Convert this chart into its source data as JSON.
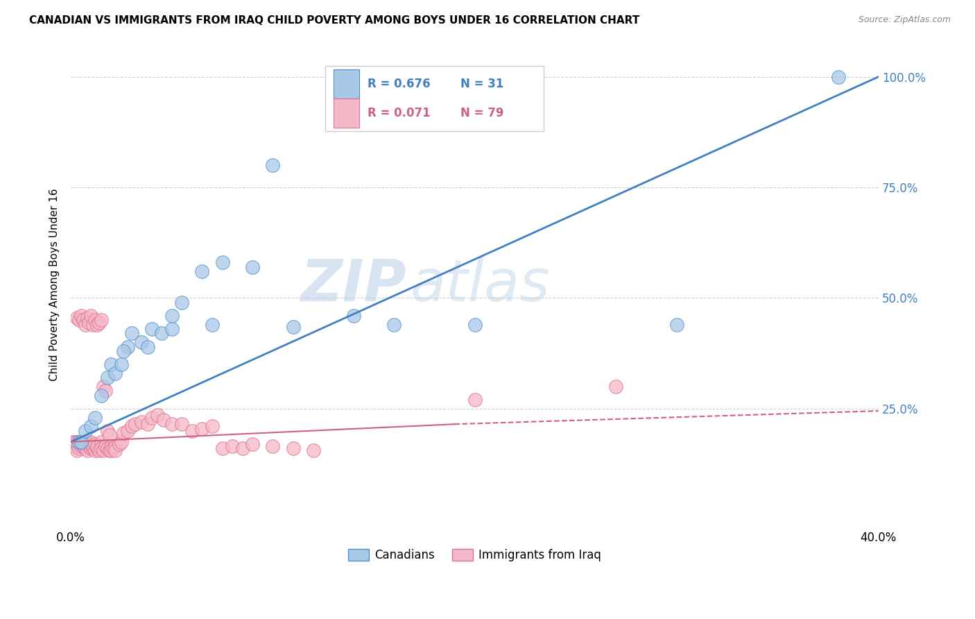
{
  "title": "CANADIAN VS IMMIGRANTS FROM IRAQ CHILD POVERTY AMONG BOYS UNDER 16 CORRELATION CHART",
  "source": "Source: ZipAtlas.com",
  "ylabel": "Child Poverty Among Boys Under 16",
  "xlim": [
    0.0,
    0.4
  ],
  "ylim": [
    -0.02,
    1.08
  ],
  "yticks": [
    0.0,
    0.25,
    0.5,
    0.75,
    1.0
  ],
  "ytick_labels": [
    "",
    "25.0%",
    "50.0%",
    "75.0%",
    "100.0%"
  ],
  "watermark_zip": "ZIP",
  "watermark_atlas": "atlas",
  "legend_canadian_R": "R = 0.676",
  "legend_canadian_N": "N = 31",
  "legend_iraq_R": "R = 0.071",
  "legend_iraq_N": "N = 79",
  "canadian_color": "#a8c8e8",
  "iraq_color": "#f5b8c8",
  "canadian_edge_color": "#5090c8",
  "iraq_edge_color": "#e07090",
  "canadian_line_color": "#4080c0",
  "iraq_line_color": "#d06080",
  "background_color": "#ffffff",
  "grid_color": "#d0d0d0",
  "can_line_x0": 0.0,
  "can_line_y0": 0.175,
  "can_line_x1": 0.4,
  "can_line_y1": 1.0,
  "iraq_line_x0": 0.0,
  "iraq_line_y0": 0.175,
  "iraq_line_solid_x1": 0.19,
  "iraq_line_y1_at_solid": 0.215,
  "iraq_line_x1": 0.4,
  "iraq_line_y1": 0.245,
  "canadians_x": [
    0.004,
    0.005,
    0.007,
    0.01,
    0.012,
    0.015,
    0.018,
    0.02,
    0.022,
    0.025,
    0.028,
    0.03,
    0.035,
    0.04,
    0.045,
    0.05,
    0.055,
    0.065,
    0.075,
    0.09,
    0.1,
    0.11,
    0.14,
    0.16,
    0.2,
    0.3,
    0.38,
    0.026,
    0.038,
    0.05,
    0.07
  ],
  "canadians_y": [
    0.175,
    0.175,
    0.2,
    0.21,
    0.23,
    0.28,
    0.32,
    0.35,
    0.33,
    0.35,
    0.39,
    0.42,
    0.4,
    0.43,
    0.42,
    0.46,
    0.49,
    0.56,
    0.58,
    0.57,
    0.8,
    0.435,
    0.46,
    0.44,
    0.44,
    0.44,
    1.0,
    0.38,
    0.39,
    0.43,
    0.44
  ],
  "iraq_x": [
    0.001,
    0.002,
    0.002,
    0.003,
    0.003,
    0.004,
    0.004,
    0.005,
    0.005,
    0.006,
    0.006,
    0.007,
    0.007,
    0.008,
    0.008,
    0.009,
    0.009,
    0.01,
    0.01,
    0.011,
    0.011,
    0.012,
    0.012,
    0.013,
    0.013,
    0.014,
    0.015,
    0.015,
    0.016,
    0.017,
    0.018,
    0.019,
    0.02,
    0.02,
    0.021,
    0.022,
    0.022,
    0.024,
    0.025,
    0.026,
    0.028,
    0.03,
    0.032,
    0.035,
    0.038,
    0.04,
    0.043,
    0.046,
    0.05,
    0.055,
    0.06,
    0.065,
    0.07,
    0.075,
    0.08,
    0.085,
    0.09,
    0.1,
    0.11,
    0.12,
    0.003,
    0.004,
    0.005,
    0.006,
    0.007,
    0.008,
    0.009,
    0.01,
    0.011,
    0.012,
    0.013,
    0.014,
    0.015,
    0.016,
    0.017,
    0.018,
    0.019,
    0.2,
    0.27
  ],
  "iraq_y": [
    0.175,
    0.165,
    0.175,
    0.155,
    0.175,
    0.16,
    0.175,
    0.17,
    0.165,
    0.175,
    0.165,
    0.17,
    0.16,
    0.175,
    0.155,
    0.165,
    0.17,
    0.16,
    0.175,
    0.16,
    0.165,
    0.155,
    0.17,
    0.16,
    0.165,
    0.155,
    0.175,
    0.16,
    0.155,
    0.165,
    0.16,
    0.155,
    0.165,
    0.155,
    0.16,
    0.165,
    0.155,
    0.17,
    0.175,
    0.195,
    0.2,
    0.21,
    0.215,
    0.22,
    0.215,
    0.23,
    0.235,
    0.225,
    0.215,
    0.215,
    0.2,
    0.205,
    0.21,
    0.16,
    0.165,
    0.16,
    0.17,
    0.165,
    0.16,
    0.155,
    0.455,
    0.45,
    0.46,
    0.45,
    0.44,
    0.455,
    0.445,
    0.46,
    0.44,
    0.45,
    0.44,
    0.445,
    0.45,
    0.3,
    0.29,
    0.2,
    0.19,
    0.27,
    0.3
  ]
}
